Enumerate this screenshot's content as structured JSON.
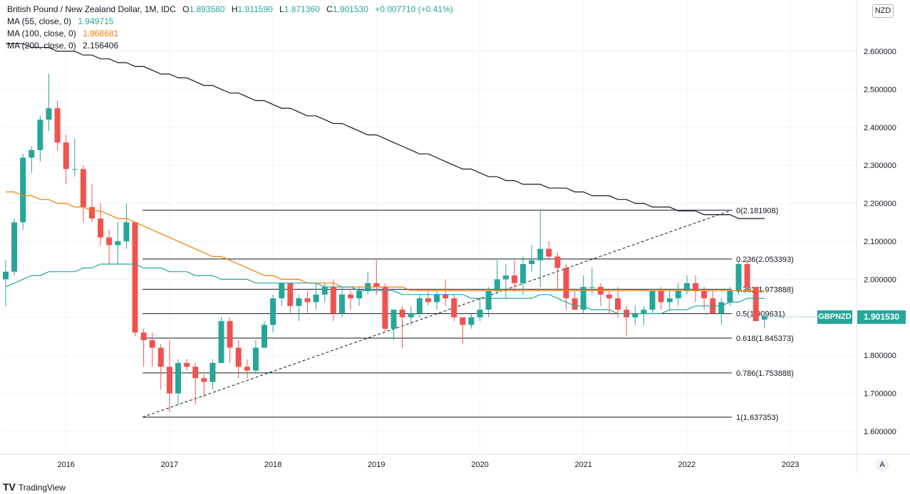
{
  "header": {
    "title": "British Pound / New Zealand Dollar, 1M, IDC",
    "open_label": "O",
    "open": "1.893580",
    "high_label": "H",
    "high": "1.911590",
    "low_label": "L",
    "low": "1.871360",
    "close_label": "C",
    "close": "1.901530",
    "change": "+0.007710 (+0.41%)"
  },
  "indicators": [
    {
      "label": "MA (55, close, 0)",
      "value": "1.949715",
      "color": "#26a69a"
    },
    {
      "label": "MA (100, close, 0)",
      "value": "1.968681",
      "color": "#f57c00"
    },
    {
      "label": "MA (200, close, 0)",
      "value": "2.156406",
      "color": "#131722"
    }
  ],
  "currency": "NZD",
  "symbol": "GBPNZD",
  "last_price": "1.901530",
  "auto_button": "A",
  "branding": {
    "logo_mark": "TV",
    "name": "TradingView"
  },
  "colors": {
    "up": "#26a69a",
    "down": "#ef5350",
    "ma55": "#26a69a",
    "ma100": "#f57c00",
    "ma200": "#131722"
  },
  "chart_data": {
    "type": "candlestick",
    "title": "British Pound / New Zealand Dollar, 1M, IDC",
    "ylim": [
      1.6,
      2.6
    ],
    "y_ticks": [
      "1.600000",
      "1.700000",
      "1.800000",
      "1.900000",
      "2.000000",
      "2.100000",
      "2.200000",
      "2.300000",
      "2.400000",
      "2.500000",
      "2.600000"
    ],
    "x_ticks": [
      "2016",
      "2017",
      "2018",
      "2019",
      "2020",
      "2021",
      "2022",
      "2023"
    ],
    "grid": true,
    "candles_ohlc": [
      [
        2.0,
        2.05,
        1.93,
        2.02
      ],
      [
        2.02,
        2.16,
        2.01,
        2.15
      ],
      [
        2.15,
        2.33,
        2.13,
        2.32
      ],
      [
        2.32,
        2.35,
        2.28,
        2.34
      ],
      [
        2.34,
        2.43,
        2.31,
        2.42
      ],
      [
        2.42,
        2.54,
        2.39,
        2.45
      ],
      [
        2.45,
        2.47,
        2.34,
        2.36
      ],
      [
        2.36,
        2.38,
        2.25,
        2.29
      ],
      [
        2.29,
        2.37,
        2.27,
        2.29
      ],
      [
        2.29,
        2.3,
        2.15,
        2.19
      ],
      [
        2.19,
        2.25,
        2.15,
        2.16
      ],
      [
        2.16,
        2.2,
        2.09,
        2.11
      ],
      [
        2.11,
        2.13,
        2.04,
        2.09
      ],
      [
        2.09,
        2.15,
        2.04,
        2.1
      ],
      [
        2.1,
        2.2,
        2.08,
        2.15
      ],
      [
        2.15,
        2.15,
        1.85,
        1.86
      ],
      [
        1.86,
        1.87,
        1.77,
        1.84
      ],
      [
        1.84,
        1.86,
        1.77,
        1.82
      ],
      [
        1.82,
        1.83,
        1.71,
        1.77
      ],
      [
        1.77,
        1.84,
        1.65,
        1.7
      ],
      [
        1.7,
        1.79,
        1.67,
        1.78
      ],
      [
        1.78,
        1.79,
        1.76,
        1.77
      ],
      [
        1.77,
        1.78,
        1.67,
        1.74
      ],
      [
        1.74,
        1.75,
        1.69,
        1.73
      ],
      [
        1.73,
        1.79,
        1.71,
        1.78
      ],
      [
        1.78,
        1.9,
        1.78,
        1.89
      ],
      [
        1.89,
        1.9,
        1.78,
        1.82
      ],
      [
        1.82,
        1.84,
        1.74,
        1.77
      ],
      [
        1.77,
        1.79,
        1.74,
        1.76
      ],
      [
        1.76,
        1.84,
        1.75,
        1.82
      ],
      [
        1.82,
        1.89,
        1.82,
        1.88
      ],
      [
        1.88,
        1.96,
        1.86,
        1.95
      ],
      [
        1.95,
        1.99,
        1.93,
        1.99
      ],
      [
        1.99,
        1.99,
        1.91,
        1.93
      ],
      [
        1.93,
        1.96,
        1.89,
        1.95
      ],
      [
        1.95,
        1.97,
        1.91,
        1.94
      ],
      [
        1.94,
        1.99,
        1.92,
        1.96
      ],
      [
        1.96,
        1.99,
        1.94,
        1.98
      ],
      [
        1.98,
        2.0,
        1.89,
        1.91
      ],
      [
        1.91,
        1.98,
        1.9,
        1.96
      ],
      [
        1.96,
        1.97,
        1.92,
        1.95
      ],
      [
        1.95,
        1.98,
        1.93,
        1.97
      ],
      [
        1.97,
        2.02,
        1.96,
        1.99
      ],
      [
        1.99,
        2.05,
        1.96,
        1.98
      ],
      [
        1.98,
        1.99,
        1.86,
        1.87
      ],
      [
        1.87,
        1.91,
        1.84,
        1.92
      ],
      [
        1.92,
        1.93,
        1.82,
        1.9
      ],
      [
        1.9,
        1.93,
        1.88,
        1.91
      ],
      [
        1.91,
        1.96,
        1.9,
        1.95
      ],
      [
        1.95,
        1.97,
        1.93,
        1.94
      ],
      [
        1.94,
        1.97,
        1.92,
        1.96
      ],
      [
        1.96,
        2.0,
        1.93,
        1.95
      ],
      [
        1.95,
        1.96,
        1.89,
        1.9
      ],
      [
        1.9,
        1.9,
        1.83,
        1.88
      ],
      [
        1.88,
        1.91,
        1.87,
        1.9
      ],
      [
        1.9,
        1.95,
        1.89,
        1.92
      ],
      [
        1.92,
        1.98,
        1.9,
        1.97
      ],
      [
        1.97,
        2.05,
        1.96,
        2.0
      ],
      [
        2.0,
        2.04,
        1.95,
        2.01
      ],
      [
        2.01,
        2.05,
        1.97,
        1.99
      ],
      [
        1.99,
        2.06,
        1.96,
        2.04
      ],
      [
        2.04,
        2.09,
        2.02,
        2.05
      ],
      [
        2.05,
        2.18,
        1.98,
        2.08
      ],
      [
        2.08,
        2.1,
        2.05,
        2.06
      ],
      [
        2.06,
        2.07,
        1.97,
        2.03
      ],
      [
        2.03,
        2.04,
        1.92,
        1.95
      ],
      [
        1.95,
        1.97,
        1.92,
        1.92
      ],
      [
        1.92,
        2.01,
        1.91,
        1.98
      ],
      [
        1.98,
        2.03,
        1.96,
        1.98
      ],
      [
        1.98,
        1.99,
        1.93,
        1.96
      ],
      [
        1.96,
        1.97,
        1.91,
        1.95
      ],
      [
        1.95,
        1.98,
        1.9,
        1.92
      ],
      [
        1.92,
        1.93,
        1.85,
        1.9
      ],
      [
        1.9,
        1.93,
        1.88,
        1.91
      ],
      [
        1.91,
        1.93,
        1.88,
        1.92
      ],
      [
        1.92,
        1.97,
        1.91,
        1.97
      ],
      [
        1.97,
        1.98,
        1.92,
        1.94
      ],
      [
        1.94,
        1.97,
        1.92,
        1.95
      ],
      [
        1.95,
        1.99,
        1.93,
        1.97
      ],
      [
        1.97,
        2.01,
        1.96,
        1.99
      ],
      [
        1.99,
        2.01,
        1.94,
        1.97
      ],
      [
        1.97,
        1.98,
        1.92,
        1.95
      ],
      [
        1.95,
        1.97,
        1.91,
        1.91
      ],
      [
        1.91,
        1.95,
        1.88,
        1.94
      ],
      [
        1.94,
        1.98,
        1.93,
        1.97
      ],
      [
        1.97,
        2.05,
        1.96,
        2.04
      ],
      [
        2.04,
        2.05,
        1.97,
        1.98
      ],
      [
        1.98,
        1.98,
        1.89,
        1.89
      ],
      [
        1.894,
        1.912,
        1.871,
        1.902
      ]
    ],
    "ma55": [
      1.98,
      1.99,
      2.0,
      2.01,
      2.01,
      2.02,
      2.02,
      2.02,
      2.02,
      2.03,
      2.03,
      2.04,
      2.04,
      2.04,
      2.04,
      2.04,
      2.03,
      2.03,
      2.03,
      2.02,
      2.02,
      2.02,
      2.01,
      2.01,
      2.01,
      2.0,
      2.0,
      2.0,
      2.0,
      1.99,
      1.99,
      1.99,
      1.99,
      1.99,
      1.99,
      1.99,
      1.99,
      1.98,
      1.98,
      1.98,
      1.98,
      1.97,
      1.97,
      1.97,
      1.97,
      1.97,
      1.96,
      1.96,
      1.96,
      1.96,
      1.96,
      1.96,
      1.96,
      1.96,
      1.95,
      1.95,
      1.95,
      1.95,
      1.95,
      1.95,
      1.95,
      1.95,
      1.96,
      1.96,
      1.95,
      1.94,
      1.93,
      1.93,
      1.92,
      1.92,
      1.92,
      1.91,
      1.91,
      1.91,
      1.91,
      1.91,
      1.91,
      1.92,
      1.92,
      1.92,
      1.93,
      1.93,
      1.93,
      1.93,
      1.94,
      1.94,
      1.95,
      1.95,
      1.95
    ],
    "ma100": [
      2.23,
      2.23,
      2.22,
      2.22,
      2.21,
      2.21,
      2.2,
      2.2,
      2.19,
      2.19,
      2.18,
      2.18,
      2.17,
      2.16,
      2.16,
      2.15,
      2.14,
      2.13,
      2.12,
      2.11,
      2.1,
      2.09,
      2.08,
      2.07,
      2.06,
      2.06,
      2.05,
      2.04,
      2.03,
      2.02,
      2.01,
      2.01,
      2.0,
      2.0,
      2.0,
      1.99,
      1.99,
      1.99,
      1.99,
      1.98,
      1.98,
      1.98,
      1.98,
      1.98,
      1.98,
      1.98,
      1.98,
      1.97,
      1.97,
      1.97,
      1.97,
      1.97,
      1.97,
      1.97,
      1.97,
      1.97,
      1.97,
      1.97,
      1.97,
      1.97,
      1.97,
      1.97,
      1.97,
      1.97,
      1.97,
      1.97,
      1.97,
      1.97,
      1.97,
      1.97,
      1.97,
      1.97,
      1.97,
      1.97,
      1.97,
      1.97,
      1.97,
      1.97,
      1.97,
      1.97,
      1.97,
      1.97,
      1.97,
      1.97,
      1.97,
      1.97,
      1.97,
      1.97,
      1.97
    ],
    "ma200": [
      2.62,
      2.62,
      2.62,
      2.61,
      2.61,
      2.61,
      2.6,
      2.6,
      2.6,
      2.59,
      2.59,
      2.58,
      2.58,
      2.57,
      2.57,
      2.56,
      2.56,
      2.55,
      2.54,
      2.54,
      2.53,
      2.53,
      2.52,
      2.51,
      2.51,
      2.5,
      2.49,
      2.49,
      2.48,
      2.47,
      2.47,
      2.46,
      2.45,
      2.45,
      2.44,
      2.43,
      2.43,
      2.42,
      2.41,
      2.41,
      2.4,
      2.39,
      2.38,
      2.38,
      2.37,
      2.36,
      2.35,
      2.34,
      2.33,
      2.33,
      2.32,
      2.31,
      2.3,
      2.29,
      2.29,
      2.28,
      2.27,
      2.27,
      2.26,
      2.26,
      2.25,
      2.25,
      2.25,
      2.24,
      2.24,
      2.24,
      2.23,
      2.23,
      2.22,
      2.22,
      2.22,
      2.21,
      2.21,
      2.2,
      2.2,
      2.19,
      2.19,
      2.19,
      2.18,
      2.18,
      2.18,
      2.17,
      2.17,
      2.17,
      2.17,
      2.16,
      2.16,
      2.16,
      2.16
    ],
    "fib_levels": [
      {
        "label": "0(2.181908)",
        "value": 2.181908
      },
      {
        "label": "0.236(2.053393)",
        "value": 2.053393
      },
      {
        "label": "0.382(1.973888)",
        "value": 1.973888
      },
      {
        "label": "0.5(1.909631)",
        "value": 1.909631
      },
      {
        "label": "0.618(1.845373)",
        "value": 1.845373
      },
      {
        "label": "0.786(1.753888)",
        "value": 1.753888
      },
      {
        "label": "1(1.637353)",
        "value": 1.637353
      }
    ]
  }
}
